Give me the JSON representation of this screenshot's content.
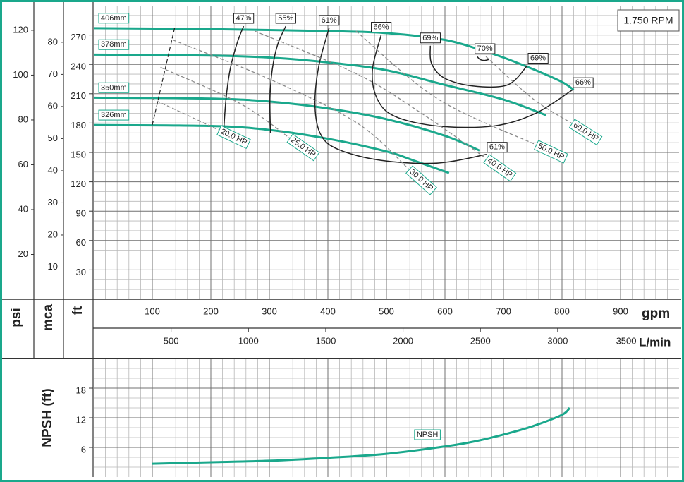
{
  "chart_data": [
    {
      "type": "line",
      "annotation": "1.750 RPM",
      "xlabel": "gpm",
      "xlim": [
        0,
        1000
      ],
      "xticks": [
        100,
        200,
        300,
        400,
        500,
        600,
        700,
        800,
        900
      ],
      "x2label": "L/min",
      "x2lim": [
        0,
        3785
      ],
      "x2ticks": [
        500,
        1000,
        1500,
        2000,
        2500,
        3000,
        3500
      ],
      "ylabel": "ft",
      "ylim": [
        0,
        300
      ],
      "yticks": [
        30,
        60,
        90,
        120,
        150,
        180,
        210,
        240,
        270
      ],
      "extra_yaxes": [
        {
          "label": "psi",
          "lim": [
            0,
            131
          ],
          "ticks": [
            20,
            40,
            60,
            80,
            100,
            120
          ]
        },
        {
          "label": "mca",
          "lim": [
            0,
            91.4
          ],
          "ticks": [
            10,
            20,
            30,
            40,
            50,
            60,
            70,
            80
          ]
        }
      ],
      "grid": true,
      "minor_grid": {
        "x": 20,
        "y": 10
      },
      "series": [
        {
          "name": "406mm",
          "kind": "head",
          "color": "#1aa88c",
          "x": [
            0,
            200,
            400,
            500,
            600,
            660,
            700,
            755,
            800,
            820
          ],
          "values": [
            277,
            276,
            274,
            272,
            265,
            255,
            247,
            234,
            222,
            214
          ]
        },
        {
          "name": "378mm",
          "kind": "head",
          "color": "#1aa88c",
          "x": [
            0,
            200,
            300,
            400,
            500,
            600,
            700,
            773
          ],
          "values": [
            250,
            249,
            247,
            242,
            234,
            219,
            204,
            188
          ]
        },
        {
          "name": "350mm",
          "kind": "head",
          "color": "#1aa88c",
          "x": [
            0,
            200,
            300,
            400,
            500,
            600,
            659
          ],
          "values": [
            206,
            205,
            202,
            195,
            184,
            167,
            152
          ]
        },
        {
          "name": "326mm",
          "kind": "head",
          "color": "#1aa88c",
          "x": [
            0,
            200,
            300,
            400,
            500,
            550,
            607
          ],
          "values": [
            178,
            177,
            173,
            164,
            151,
            141,
            129
          ]
        },
        {
          "name": "47%",
          "kind": "efficiency",
          "color": "#222222",
          "x": [
            256,
            245,
            233,
            226,
            222
          ],
          "values": [
            279,
            262,
            235,
            205,
            172
          ]
        },
        {
          "name": "55%",
          "kind": "efficiency",
          "color": "#222222",
          "x": [
            328,
            314,
            305,
            301,
            302
          ],
          "values": [
            279,
            260,
            235,
            205,
            170
          ]
        },
        {
          "name": "61%",
          "kind": "efficiency",
          "color": "#222222",
          "x": [
            402,
            384,
            378,
            388,
            418,
            490,
            586,
            671
          ],
          "values": [
            277,
            237,
            197,
            168,
            153,
            142,
            139,
            148
          ]
        },
        {
          "name": "66%",
          "kind": "efficiency",
          "color": "#222222",
          "x": [
            491,
            476,
            484,
            514,
            587,
            683,
            755,
            818
          ],
          "values": [
            270,
            234,
            205,
            187,
            177,
            177,
            190,
            214
          ]
        },
        {
          "name": "69%",
          "kind": "efficiency",
          "color": "#222222",
          "x": [
            575,
            577,
            599,
            647,
            707,
            741
          ],
          "values": [
            259,
            241,
            226,
            218,
            219,
            239
          ]
        },
        {
          "name": "70%",
          "kind": "efficiency",
          "color": "#222222",
          "x": [
            655,
            660,
            667,
            675
          ],
          "values": [
            248,
            245,
            244,
            245
          ]
        },
        {
          "name": "20.0 HP",
          "kind": "power",
          "color": "#8a8a8a",
          "x": [
            99,
            160,
            213
          ],
          "values": [
            205,
            188,
            173
          ]
        },
        {
          "name": "25.0 HP",
          "kind": "power",
          "color": "#8a8a8a",
          "x": [
            114,
            250,
            334
          ],
          "values": [
            237,
            200,
            165
          ]
        },
        {
          "name": "30.0 HP",
          "kind": "power",
          "color": "#8a8a8a",
          "x": [
            135,
            300,
            450,
            538
          ],
          "values": [
            265,
            225,
            180,
            133
          ]
        },
        {
          "name": "40.0 HP",
          "kind": "power",
          "color": "#8a8a8a",
          "x": [
            275,
            450,
            560,
            670
          ],
          "values": [
            274,
            230,
            190,
            144
          ]
        },
        {
          "name": "50.0 HP",
          "kind": "power",
          "color": "#8a8a8a",
          "x": [
            448,
            587,
            755
          ],
          "values": [
            274,
            205,
            158
          ]
        },
        {
          "name": "60.0 HP",
          "kind": "power",
          "color": "#8a8a8a",
          "x": [
            670,
            750,
            816
          ],
          "values": [
            248,
            205,
            180
          ]
        },
        {
          "kind": "limit",
          "color": "#222222",
          "x": [
            100,
            138
          ],
          "values": [
            178,
            277
          ]
        }
      ]
    },
    {
      "type": "line",
      "ylabel": "NPSH (ft)",
      "xlim": [
        0,
        1000
      ],
      "ylim": [
        0,
        24
      ],
      "yticks": [
        6,
        12,
        18
      ],
      "grid": true,
      "minor_grid": {
        "x": 20,
        "y": 2
      },
      "series": [
        {
          "name": "NPSH",
          "kind": "head",
          "color": "#1aa88c",
          "x": [
            100,
            200,
            300,
            400,
            500,
            600,
            650,
            700,
            750,
            800,
            813
          ],
          "values": [
            2.7,
            3.0,
            3.3,
            3.9,
            4.7,
            6.2,
            7.2,
            8.6,
            10.3,
            12.6,
            14.0
          ]
        }
      ]
    }
  ]
}
